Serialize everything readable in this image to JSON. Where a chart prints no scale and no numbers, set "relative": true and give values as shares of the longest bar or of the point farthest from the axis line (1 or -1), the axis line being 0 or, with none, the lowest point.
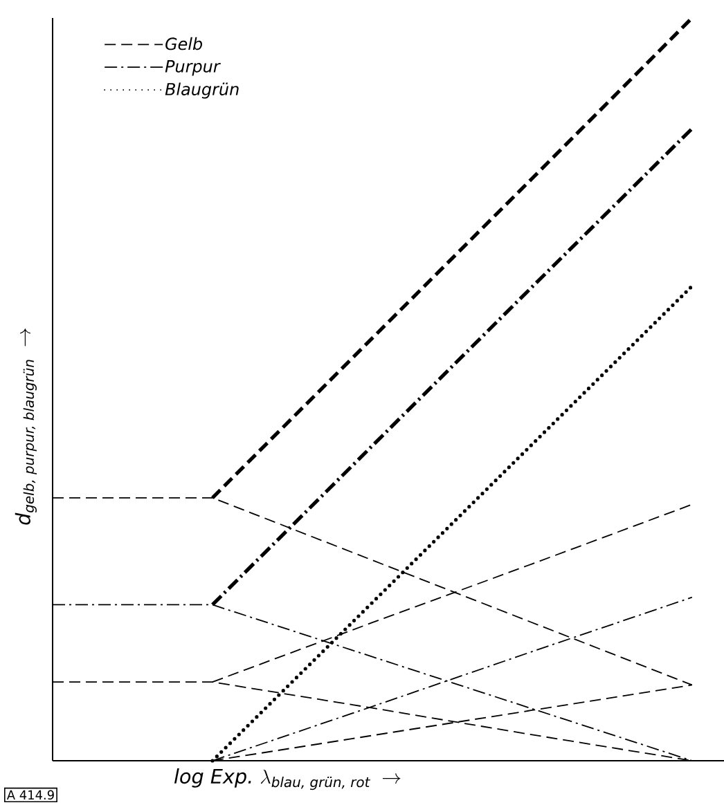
{
  "chart_data": {
    "type": "line",
    "relative": true,
    "categories": [
      null,
      null,
      null,
      null,
      null
    ],
    "tick_labels": false,
    "legend": "top left",
    "marker": "none",
    "xlabel": "\\textit{log Exp.}\\ \\mathit{\\lambda}_{\\textit{blau, grün, rot}}\\;\\rightarrow",
    "ylabel": "\\mathit{d}_{\\textit{gelb, purpur, blaugrün}}\\;\\rightarrow",
    "annotations": [
      "A 414.9"
    ],
    "series": [
      {
        "name": "Gelb",
        "color": "#000000",
        "line_style": "dashed",
        "values": [
          null,
          0.354,
          0.569,
          0.784,
          1.0
        ]
      },
      {
        "name": "Purpur",
        "color": "#000000",
        "line_style": "dashdot",
        "values": [
          null,
          0.21,
          0.424,
          0.638,
          0.851
        ]
      },
      {
        "name": "Blaugrün",
        "color": "#000000",
        "line_style": "dotted",
        "values": [
          null,
          0,
          0.213,
          0.426,
          0.639
        ]
      },
      {
        "color": "#000000",
        "line_style": "dashed",
        "values": [
          0.354,
          0.354,
          0.27,
          0.186,
          0.102
        ]
      },
      {
        "color": "#000000",
        "line_style": "dashdot",
        "values": [
          0.21,
          0.21,
          0.14,
          0.07,
          0
        ]
      },
      {
        "color": "#000000",
        "line_style": "dashed",
        "values": [
          0.106,
          0.106,
          0.071,
          0.035,
          0
        ]
      },
      {
        "color": "#000000",
        "line_style": "dashed",
        "values": [
          null,
          0.106,
          0.186,
          0.265,
          0.345
        ]
      },
      {
        "color": "#000000",
        "line_style": "dashdot",
        "values": [
          null,
          0,
          0.073,
          0.147,
          0.22
        ]
      },
      {
        "color": "#000000",
        "line_style": "dashed",
        "values": [
          null,
          0,
          0.034,
          0.068,
          0.102
        ]
      }
    ]
  }
}
